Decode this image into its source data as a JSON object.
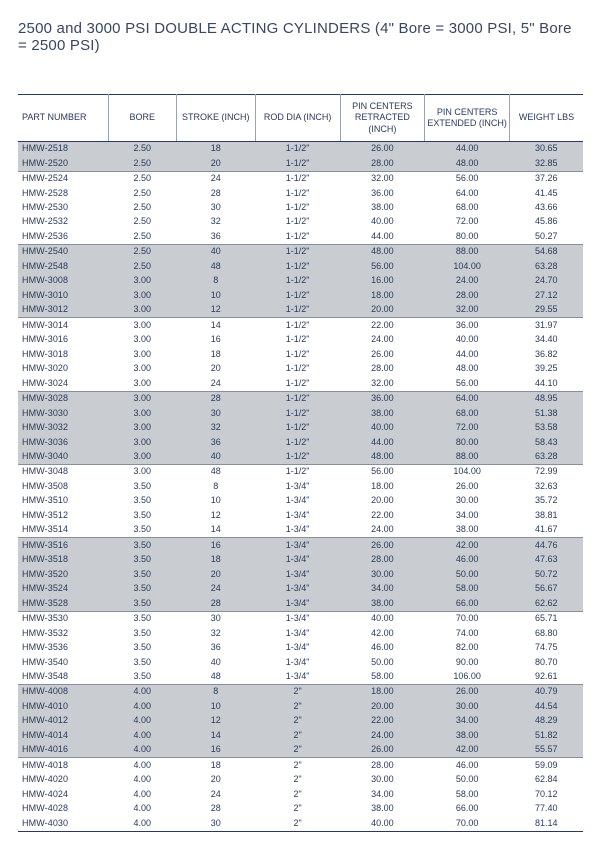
{
  "title": "2500 and 3000 PSI DOUBLE ACTING CYLINDERS (4\" Bore = 3000 PSI, 5\" Bore = 2500 PSI)",
  "columns": [
    "PART NUMBER",
    "BORE",
    "STROKE (INCH)",
    "ROD DIA (INCH)",
    "PIN CENTERS RETRACTED (INCH)",
    "PIN CENTERS EXTENDED (INCH)",
    "WEIGHT LBS"
  ],
  "groups": [
    {
      "shade": true,
      "rows": [
        [
          "HMW-2518",
          "2.50",
          "18",
          "1-1/2\"",
          "26.00",
          "44.00",
          "30.65"
        ],
        [
          "HMW-2520",
          "2.50",
          "20",
          "1-1/2\"",
          "28.00",
          "48.00",
          "32.85"
        ]
      ]
    },
    {
      "shade": false,
      "rows": [
        [
          "HMW-2524",
          "2.50",
          "24",
          "1-1/2\"",
          "32.00",
          "56.00",
          "37.26"
        ],
        [
          "HMW-2528",
          "2.50",
          "28",
          "1-1/2\"",
          "36.00",
          "64.00",
          "41.45"
        ],
        [
          "HMW-2530",
          "2.50",
          "30",
          "1-1/2\"",
          "38.00",
          "68.00",
          "43.66"
        ],
        [
          "HMW-2532",
          "2.50",
          "32",
          "1-1/2\"",
          "40.00",
          "72.00",
          "45.86"
        ],
        [
          "HMW-2536",
          "2.50",
          "36",
          "1-1/2\"",
          "44.00",
          "80.00",
          "50.27"
        ]
      ]
    },
    {
      "shade": true,
      "rows": [
        [
          "HMW-2540",
          "2.50",
          "40",
          "1-1/2\"",
          "48.00",
          "88.00",
          "54.68"
        ],
        [
          "HMW-2548",
          "2.50",
          "48",
          "1-1/2\"",
          "56.00",
          "104.00",
          "63.28"
        ],
        [
          "HMW-3008",
          "3.00",
          "8",
          "1-1/2\"",
          "16.00",
          "24.00",
          "24.70"
        ],
        [
          "HMW-3010",
          "3.00",
          "10",
          "1-1/2\"",
          "18.00",
          "28.00",
          "27.12"
        ],
        [
          "HMW-3012",
          "3.00",
          "12",
          "1-1/2\"",
          "20.00",
          "32.00",
          "29.55"
        ]
      ]
    },
    {
      "shade": false,
      "rows": [
        [
          "HMW-3014",
          "3.00",
          "14",
          "1-1/2\"",
          "22.00",
          "36.00",
          "31.97"
        ],
        [
          "HMW-3016",
          "3.00",
          "16",
          "1-1/2\"",
          "24.00",
          "40.00",
          "34.40"
        ],
        [
          "HMW-3018",
          "3.00",
          "18",
          "1-1/2\"",
          "26.00",
          "44.00",
          "36.82"
        ],
        [
          "HMW-3020",
          "3.00",
          "20",
          "1-1/2\"",
          "28.00",
          "48.00",
          "39.25"
        ],
        [
          "HMW-3024",
          "3.00",
          "24",
          "1-1/2\"",
          "32.00",
          "56.00",
          "44.10"
        ]
      ]
    },
    {
      "shade": true,
      "rows": [
        [
          "HMW-3028",
          "3.00",
          "28",
          "1-1/2\"",
          "36.00",
          "64.00",
          "48.95"
        ],
        [
          "HMW-3030",
          "3.00",
          "30",
          "1-1/2\"",
          "38.00",
          "68.00",
          "51.38"
        ],
        [
          "HMW-3032",
          "3.00",
          "32",
          "1-1/2\"",
          "40.00",
          "72.00",
          "53.58"
        ],
        [
          "HMW-3036",
          "3.00",
          "36",
          "1-1/2\"",
          "44.00",
          "80.00",
          "58.43"
        ],
        [
          "HMW-3040",
          "3.00",
          "40",
          "1-1/2\"",
          "48.00",
          "88.00",
          "63.28"
        ]
      ]
    },
    {
      "shade": false,
      "rows": [
        [
          "HMW-3048",
          "3.00",
          "48",
          "1-1/2\"",
          "56.00",
          "104.00",
          "72.99"
        ],
        [
          "HMW-3508",
          "3.50",
          "8",
          "1-3/4\"",
          "18.00",
          "26.00",
          "32.63"
        ],
        [
          "HMW-3510",
          "3.50",
          "10",
          "1-3/4\"",
          "20.00",
          "30.00",
          "35.72"
        ],
        [
          "HMW-3512",
          "3.50",
          "12",
          "1-3/4\"",
          "22.00",
          "34.00",
          "38.81"
        ],
        [
          "HMW-3514",
          "3.50",
          "14",
          "1-3/4\"",
          "24.00",
          "38.00",
          "41.67"
        ]
      ]
    },
    {
      "shade": true,
      "rows": [
        [
          "HMW-3516",
          "3.50",
          "16",
          "1-3/4\"",
          "26.00",
          "42.00",
          "44.76"
        ],
        [
          "HMW-3518",
          "3.50",
          "18",
          "1-3/4\"",
          "28.00",
          "46.00",
          "47.63"
        ],
        [
          "HMW-3520",
          "3.50",
          "20",
          "1-3/4\"",
          "30.00",
          "50.00",
          "50.72"
        ],
        [
          "HMW-3524",
          "3.50",
          "24",
          "1-3/4\"",
          "34.00",
          "58.00",
          "56.67"
        ],
        [
          "HMW-3528",
          "3.50",
          "28",
          "1-3/4\"",
          "38.00",
          "66.00",
          "62.62"
        ]
      ]
    },
    {
      "shade": false,
      "rows": [
        [
          "HMW-3530",
          "3.50",
          "30",
          "1-3/4\"",
          "40.00",
          "70.00",
          "65.71"
        ],
        [
          "HMW-3532",
          "3.50",
          "32",
          "1-3/4\"",
          "42.00",
          "74.00",
          "68.80"
        ],
        [
          "HMW-3536",
          "3.50",
          "36",
          "1-3/4\"",
          "46.00",
          "82.00",
          "74.75"
        ],
        [
          "HMW-3540",
          "3.50",
          "40",
          "1-3/4\"",
          "50.00",
          "90.00",
          "80.70"
        ],
        [
          "HMW-3548",
          "3.50",
          "48",
          "1-3/4\"",
          "58.00",
          "106.00",
          "92.61"
        ]
      ]
    },
    {
      "shade": true,
      "rows": [
        [
          "HMW-4008",
          "4.00",
          "8",
          "2\"",
          "18.00",
          "26.00",
          "40.79"
        ],
        [
          "HMW-4010",
          "4.00",
          "10",
          "2\"",
          "20.00",
          "30.00",
          "44.54"
        ],
        [
          "HMW-4012",
          "4.00",
          "12",
          "2\"",
          "22.00",
          "34.00",
          "48.29"
        ],
        [
          "HMW-4014",
          "4.00",
          "14",
          "2\"",
          "24.00",
          "38.00",
          "51.82"
        ],
        [
          "HMW-4016",
          "4.00",
          "16",
          "2\"",
          "26.00",
          "42.00",
          "55.57"
        ]
      ]
    },
    {
      "shade": false,
      "rows": [
        [
          "HMW-4018",
          "4.00",
          "18",
          "2\"",
          "28.00",
          "46.00",
          "59.09"
        ],
        [
          "HMW-4020",
          "4.00",
          "20",
          "2\"",
          "30.00",
          "50.00",
          "62.84"
        ],
        [
          "HMW-4024",
          "4.00",
          "24",
          "2\"",
          "34.00",
          "58.00",
          "70.12"
        ],
        [
          "HMW-4028",
          "4.00",
          "28",
          "2\"",
          "38.00",
          "66.00",
          "77.40"
        ],
        [
          "HMW-4030",
          "4.00",
          "30",
          "2\"",
          "40.00",
          "70.00",
          "81.14"
        ]
      ]
    }
  ],
  "style": {
    "text_color": "#2a3a5a",
    "shade_color": "#c9cdd2",
    "rule_color": "#888f9c",
    "heavy_rule_color": "#2a3a5a",
    "header_fontsize": 9,
    "body_fontsize": 9,
    "title_fontsize": 15
  }
}
